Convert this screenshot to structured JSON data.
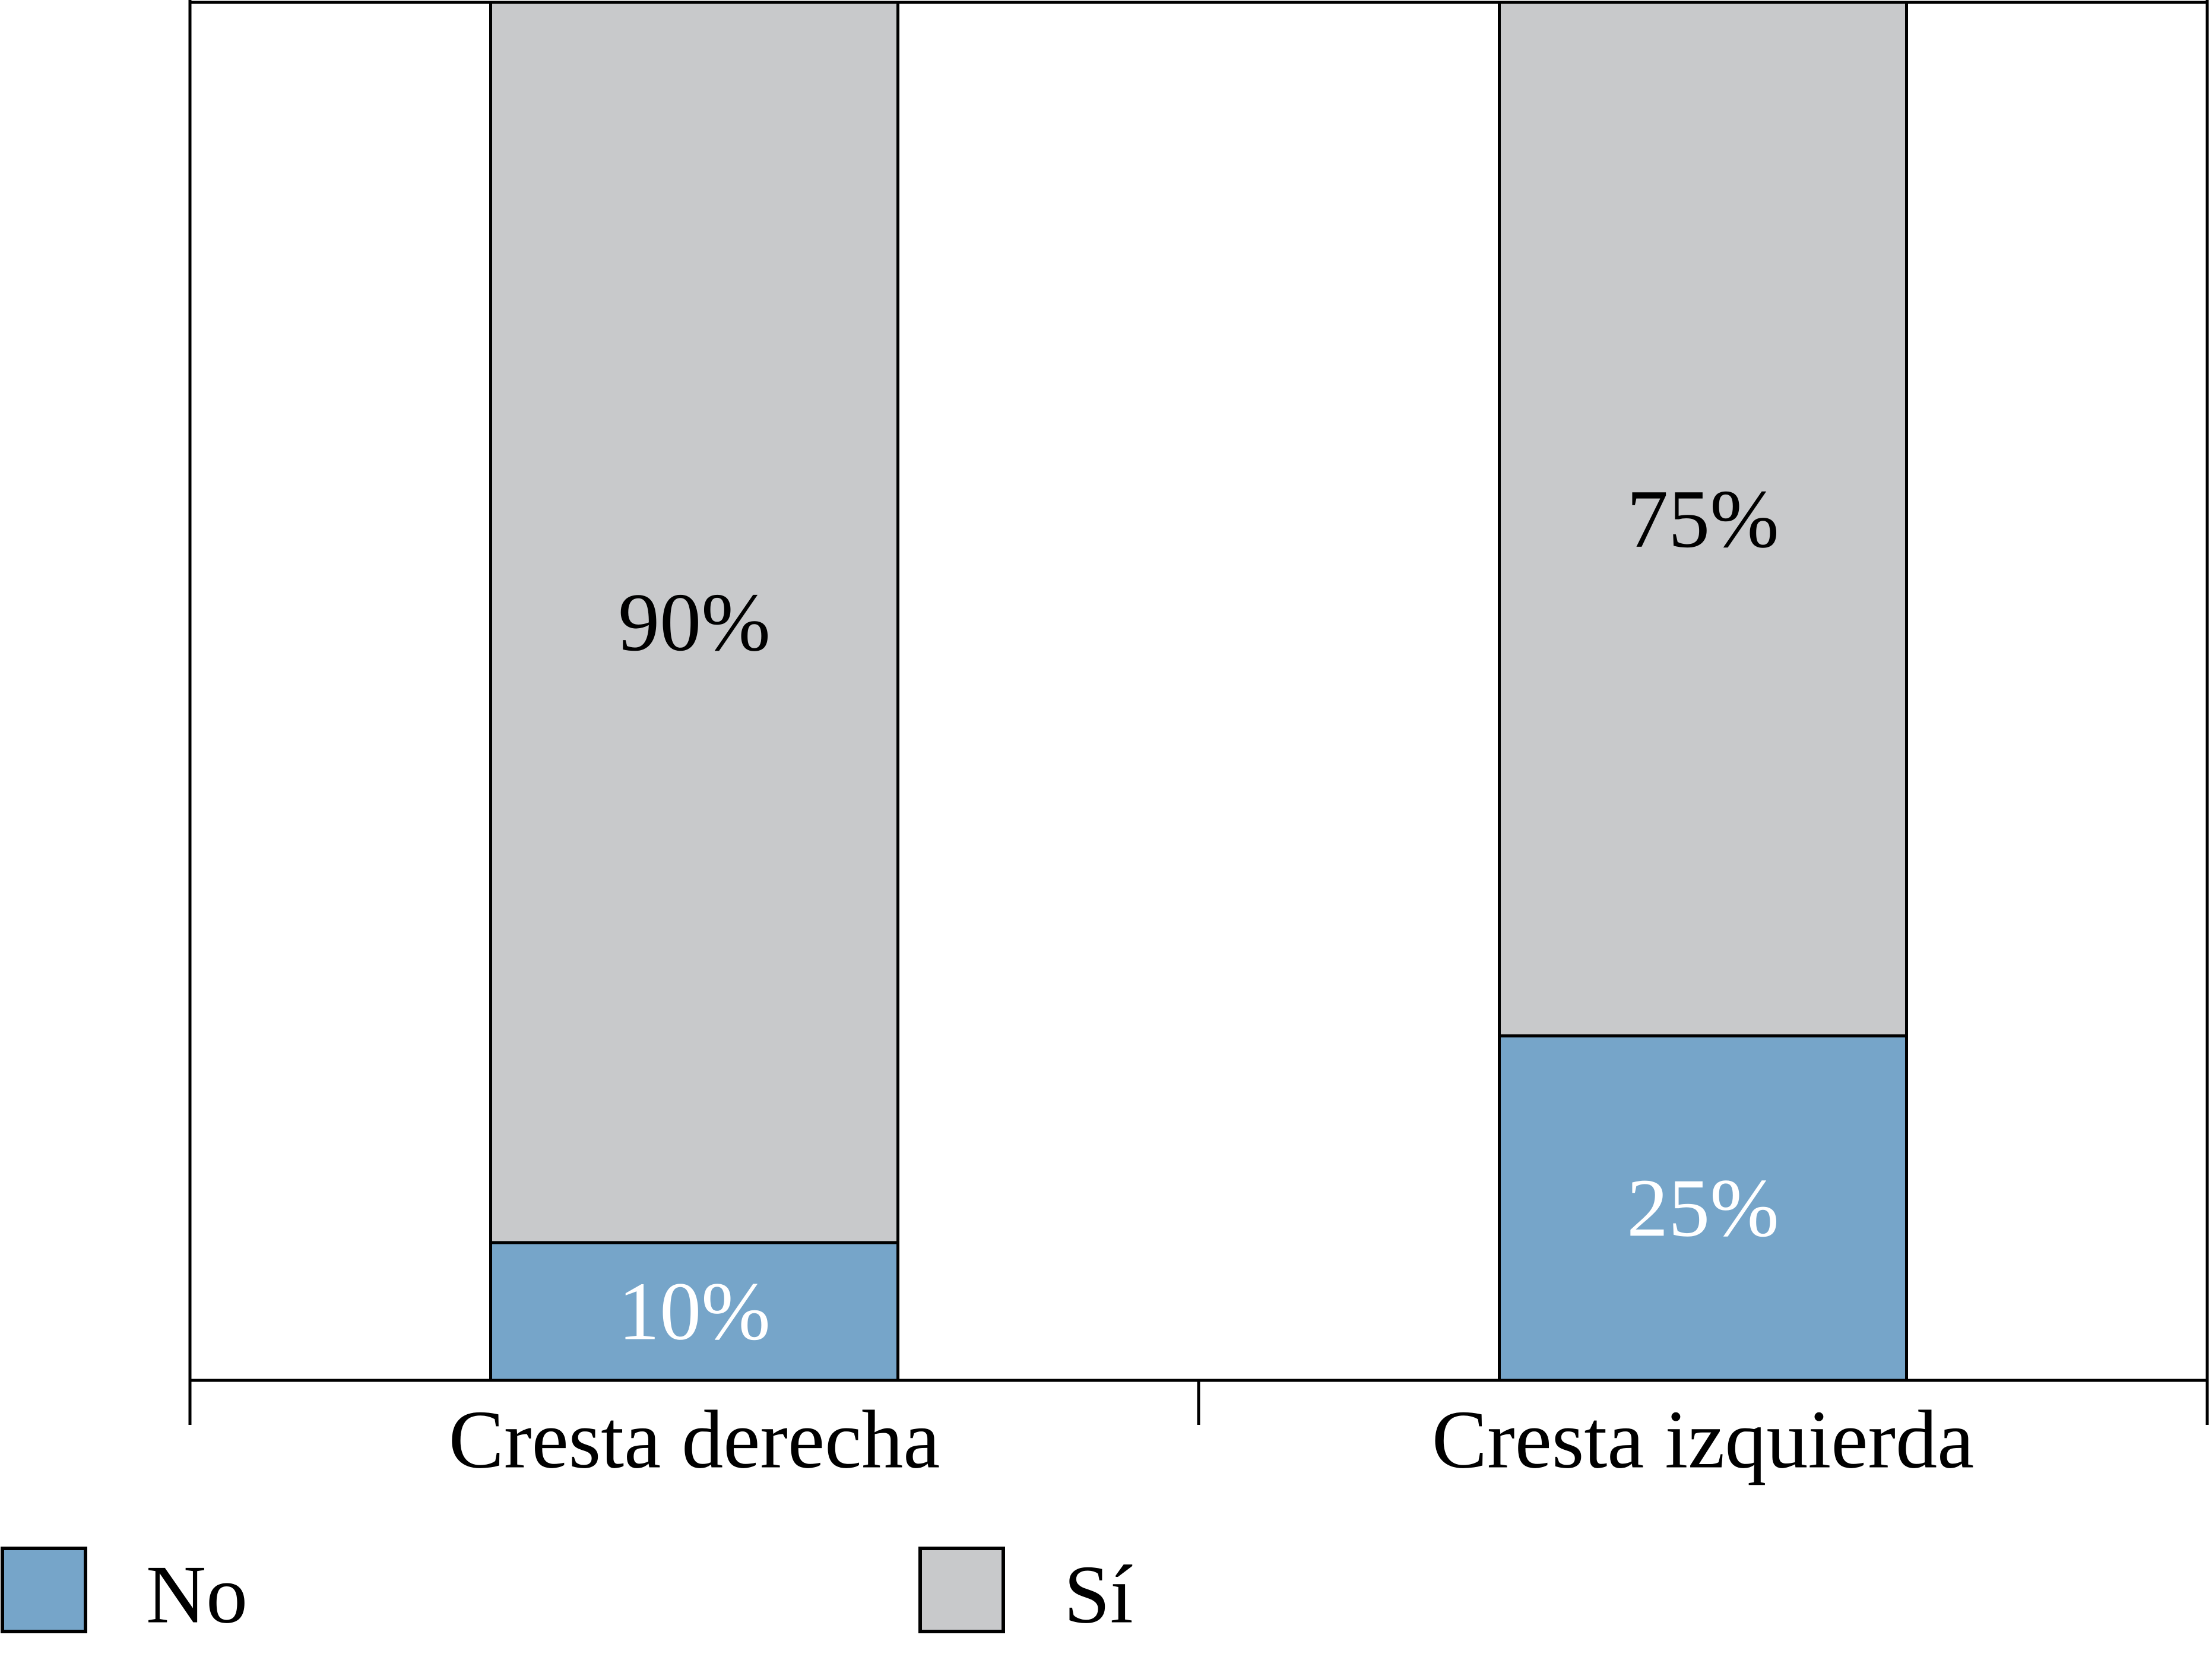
{
  "chart_data": {
    "type": "bar",
    "stacked": true,
    "percent": true,
    "title": "",
    "xlabel": "",
    "ylabel": "",
    "ylim": [
      0,
      100
    ],
    "grid": false,
    "legend_position": "bottom-left",
    "categories": [
      "Cresta derecha",
      "Cresta izquierda"
    ],
    "series": [
      {
        "name": "No",
        "color": "#76a5c9",
        "label_color": "#ffffff",
        "values": [
          10,
          25
        ],
        "labels": [
          "10%",
          "25%"
        ]
      },
      {
        "name": "Sí",
        "color": "#c8c9cb",
        "label_color": "#000000",
        "values": [
          90,
          75
        ],
        "labels": [
          "90%",
          "75%"
        ]
      }
    ]
  }
}
